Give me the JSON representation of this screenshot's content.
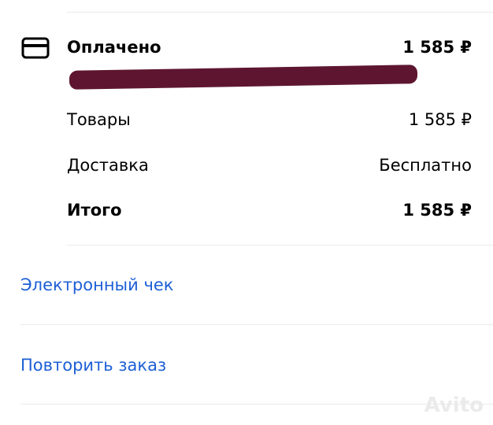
{
  "payment": {
    "label": "Оплачено",
    "amount": "1 585 ₽",
    "icon": "credit-card-icon"
  },
  "lines": [
    {
      "label": "Товары",
      "value": "1 585 ₽"
    },
    {
      "label": "Доставка",
      "value": "Бесплатно"
    },
    {
      "label": "Итого",
      "value": "1 585 ₽"
    }
  ],
  "links": {
    "receipt": "Электронный чек",
    "repeat": "Повторить заказ"
  },
  "watermark": "Avito",
  "colors": {
    "link": "#1d5fd6",
    "redaction": "#5e1630"
  }
}
